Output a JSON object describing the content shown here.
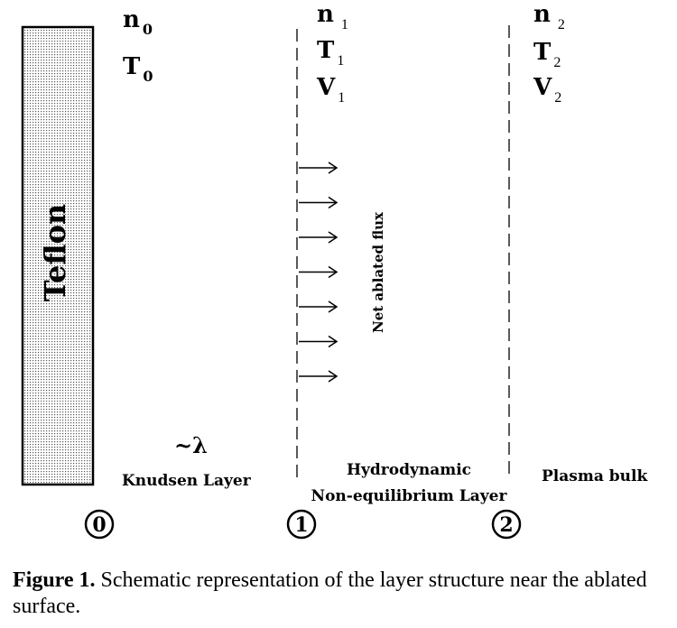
{
  "teflon_label": "Teflon",
  "flux_label": "Net ablated flux",
  "lambda_label": "~λ",
  "surface0": {
    "n": "n",
    "n_sub": "0",
    "T": "T",
    "T_sub": "0"
  },
  "boundary1": {
    "n": "n",
    "n_sub": "1",
    "T": "T",
    "T_sub": "1",
    "V": "V",
    "V_sub": "1"
  },
  "boundary2": {
    "n": "n",
    "n_sub": "2",
    "T": "T",
    "T_sub": "2",
    "V": "V",
    "V_sub": "2"
  },
  "layers": {
    "knudsen": "Knudsen Layer",
    "hydro_line1": "Hydrodynamic",
    "hydro_line2": "Non-equilibrium Layer",
    "plasma": "Plasma bulk"
  },
  "markers": [
    "0",
    "1",
    "2"
  ],
  "flux_arrow_count": 7,
  "caption": {
    "figure_label": "Figure 1.",
    "text": " Schematic representation of the layer structure near the ablated surface."
  }
}
